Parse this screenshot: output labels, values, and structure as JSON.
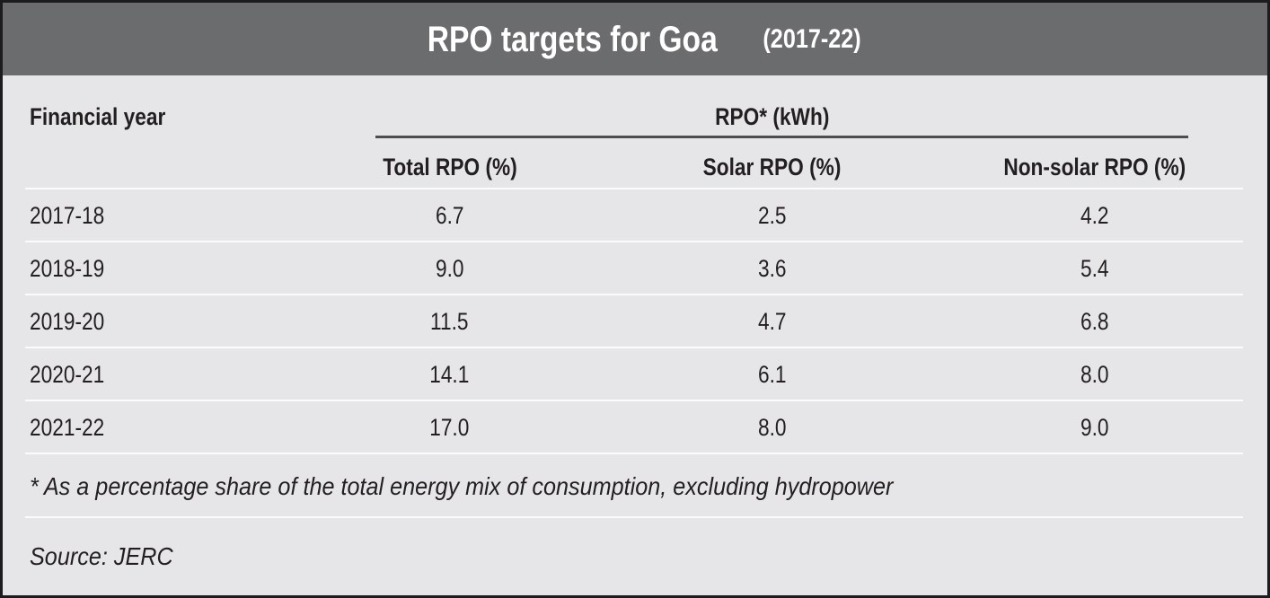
{
  "title": {
    "main": "RPO targets for Goa",
    "suffix": "(2017-22)"
  },
  "table": {
    "row_header": "Financial year",
    "group_header": "RPO* (kWh)",
    "columns": [
      "Total RPO (%)",
      "Solar RPO (%)",
      "Non-solar RPO (%)"
    ],
    "rows": [
      {
        "year": "2017-18",
        "total": "6.7",
        "solar": "2.5",
        "nonsolar": "4.2"
      },
      {
        "year": "2018-19",
        "total": "9.0",
        "solar": "3.6",
        "nonsolar": "5.4"
      },
      {
        "year": "2019-20",
        "total": "11.5",
        "solar": "4.7",
        "nonsolar": "6.8"
      },
      {
        "year": "2020-21",
        "total": "14.1",
        "solar": "6.1",
        "nonsolar": "8.0"
      },
      {
        "year": "2021-22",
        "total": "17.0",
        "solar": "8.0",
        "nonsolar": "9.0"
      }
    ]
  },
  "footnote": "* As a percentage share of the total energy mix of consumption, excluding hydropower",
  "source": "Source: JERC",
  "colors": {
    "title_bar": "#6b6c6e",
    "title_text": "#ffffff",
    "background": "#e6e6e8",
    "text": "#231f20",
    "group_rule": "#4d4d4f",
    "row_separator": "#fbfbfb",
    "outer_border": "#1c1c1e"
  },
  "chart_data": {
    "type": "table",
    "title": "RPO targets for Goa (2017-22)",
    "columns": [
      "Financial year",
      "Total RPO (%)",
      "Solar RPO (%)",
      "Non-solar RPO (%)"
    ],
    "group_header": "RPO* (kWh)",
    "rows": [
      [
        "2017-18",
        6.7,
        2.5,
        4.2
      ],
      [
        "2018-19",
        9.0,
        3.6,
        5.4
      ],
      [
        "2019-20",
        11.5,
        4.7,
        6.8
      ],
      [
        "2020-21",
        14.1,
        6.1,
        8.0
      ],
      [
        "2021-22",
        17.0,
        8.0,
        9.0
      ]
    ],
    "notes": [
      "* As a percentage share of the total energy mix of consumption, excluding hydropower",
      "Source: JERC"
    ]
  }
}
